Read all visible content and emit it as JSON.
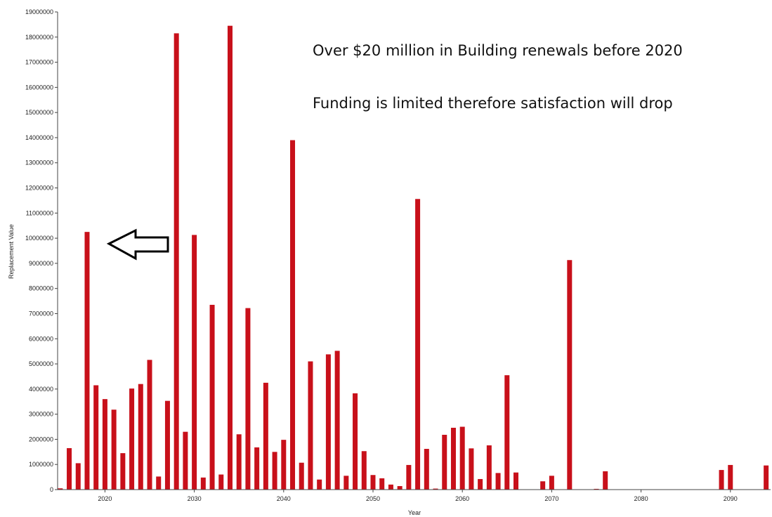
{
  "chart_data": {
    "type": "bar",
    "title": "",
    "xlabel": "Year",
    "ylabel": "Replacement Value",
    "xlim": [
      2014.7,
      2094.5
    ],
    "ylim": [
      0,
      19000000
    ],
    "yticks": [
      0,
      1000000,
      2000000,
      3000000,
      4000000,
      5000000,
      6000000,
      7000000,
      8000000,
      9000000,
      10000000,
      11000000,
      12000000,
      13000000,
      14000000,
      15000000,
      16000000,
      17000000,
      18000000,
      19000000
    ],
    "xticks": [
      2020,
      2030,
      2040,
      2050,
      2060,
      2070,
      2080,
      2090
    ],
    "bar_color": "#c8101a",
    "grid": false,
    "x": [
      2015,
      2016,
      2017,
      2018,
      2019,
      2020,
      2021,
      2022,
      2023,
      2024,
      2025,
      2026,
      2027,
      2028,
      2029,
      2030,
      2031,
      2032,
      2033,
      2034,
      2035,
      2036,
      2037,
      2038,
      2039,
      2040,
      2041,
      2042,
      2043,
      2044,
      2045,
      2046,
      2047,
      2048,
      2049,
      2050,
      2051,
      2052,
      2053,
      2054,
      2055,
      2056,
      2057,
      2058,
      2059,
      2060,
      2061,
      2062,
      2063,
      2064,
      2065,
      2066,
      2069,
      2070,
      2072,
      2075,
      2076,
      2089,
      2090,
      2094
    ],
    "values": [
      50000,
      1650000,
      1050000,
      10250000,
      4150000,
      3600000,
      3180000,
      1450000,
      4020000,
      4200000,
      5160000,
      520000,
      3530000,
      18150000,
      2300000,
      10130000,
      480000,
      7350000,
      600000,
      18450000,
      2200000,
      7220000,
      1680000,
      4250000,
      1500000,
      1980000,
      13900000,
      1070000,
      5100000,
      400000,
      5380000,
      5520000,
      550000,
      3830000,
      1530000,
      580000,
      450000,
      200000,
      140000,
      980000,
      11560000,
      1620000,
      40000,
      2180000,
      2460000,
      2500000,
      1640000,
      420000,
      1760000,
      660000,
      4550000,
      680000,
      330000,
      550000,
      9130000,
      30000,
      730000,
      780000,
      980000,
      960000
    ]
  },
  "annotations": {
    "line1": "Over $20 million in Building renewals before 2020",
    "line2": "Funding is limited therefore satisfaction will drop"
  }
}
